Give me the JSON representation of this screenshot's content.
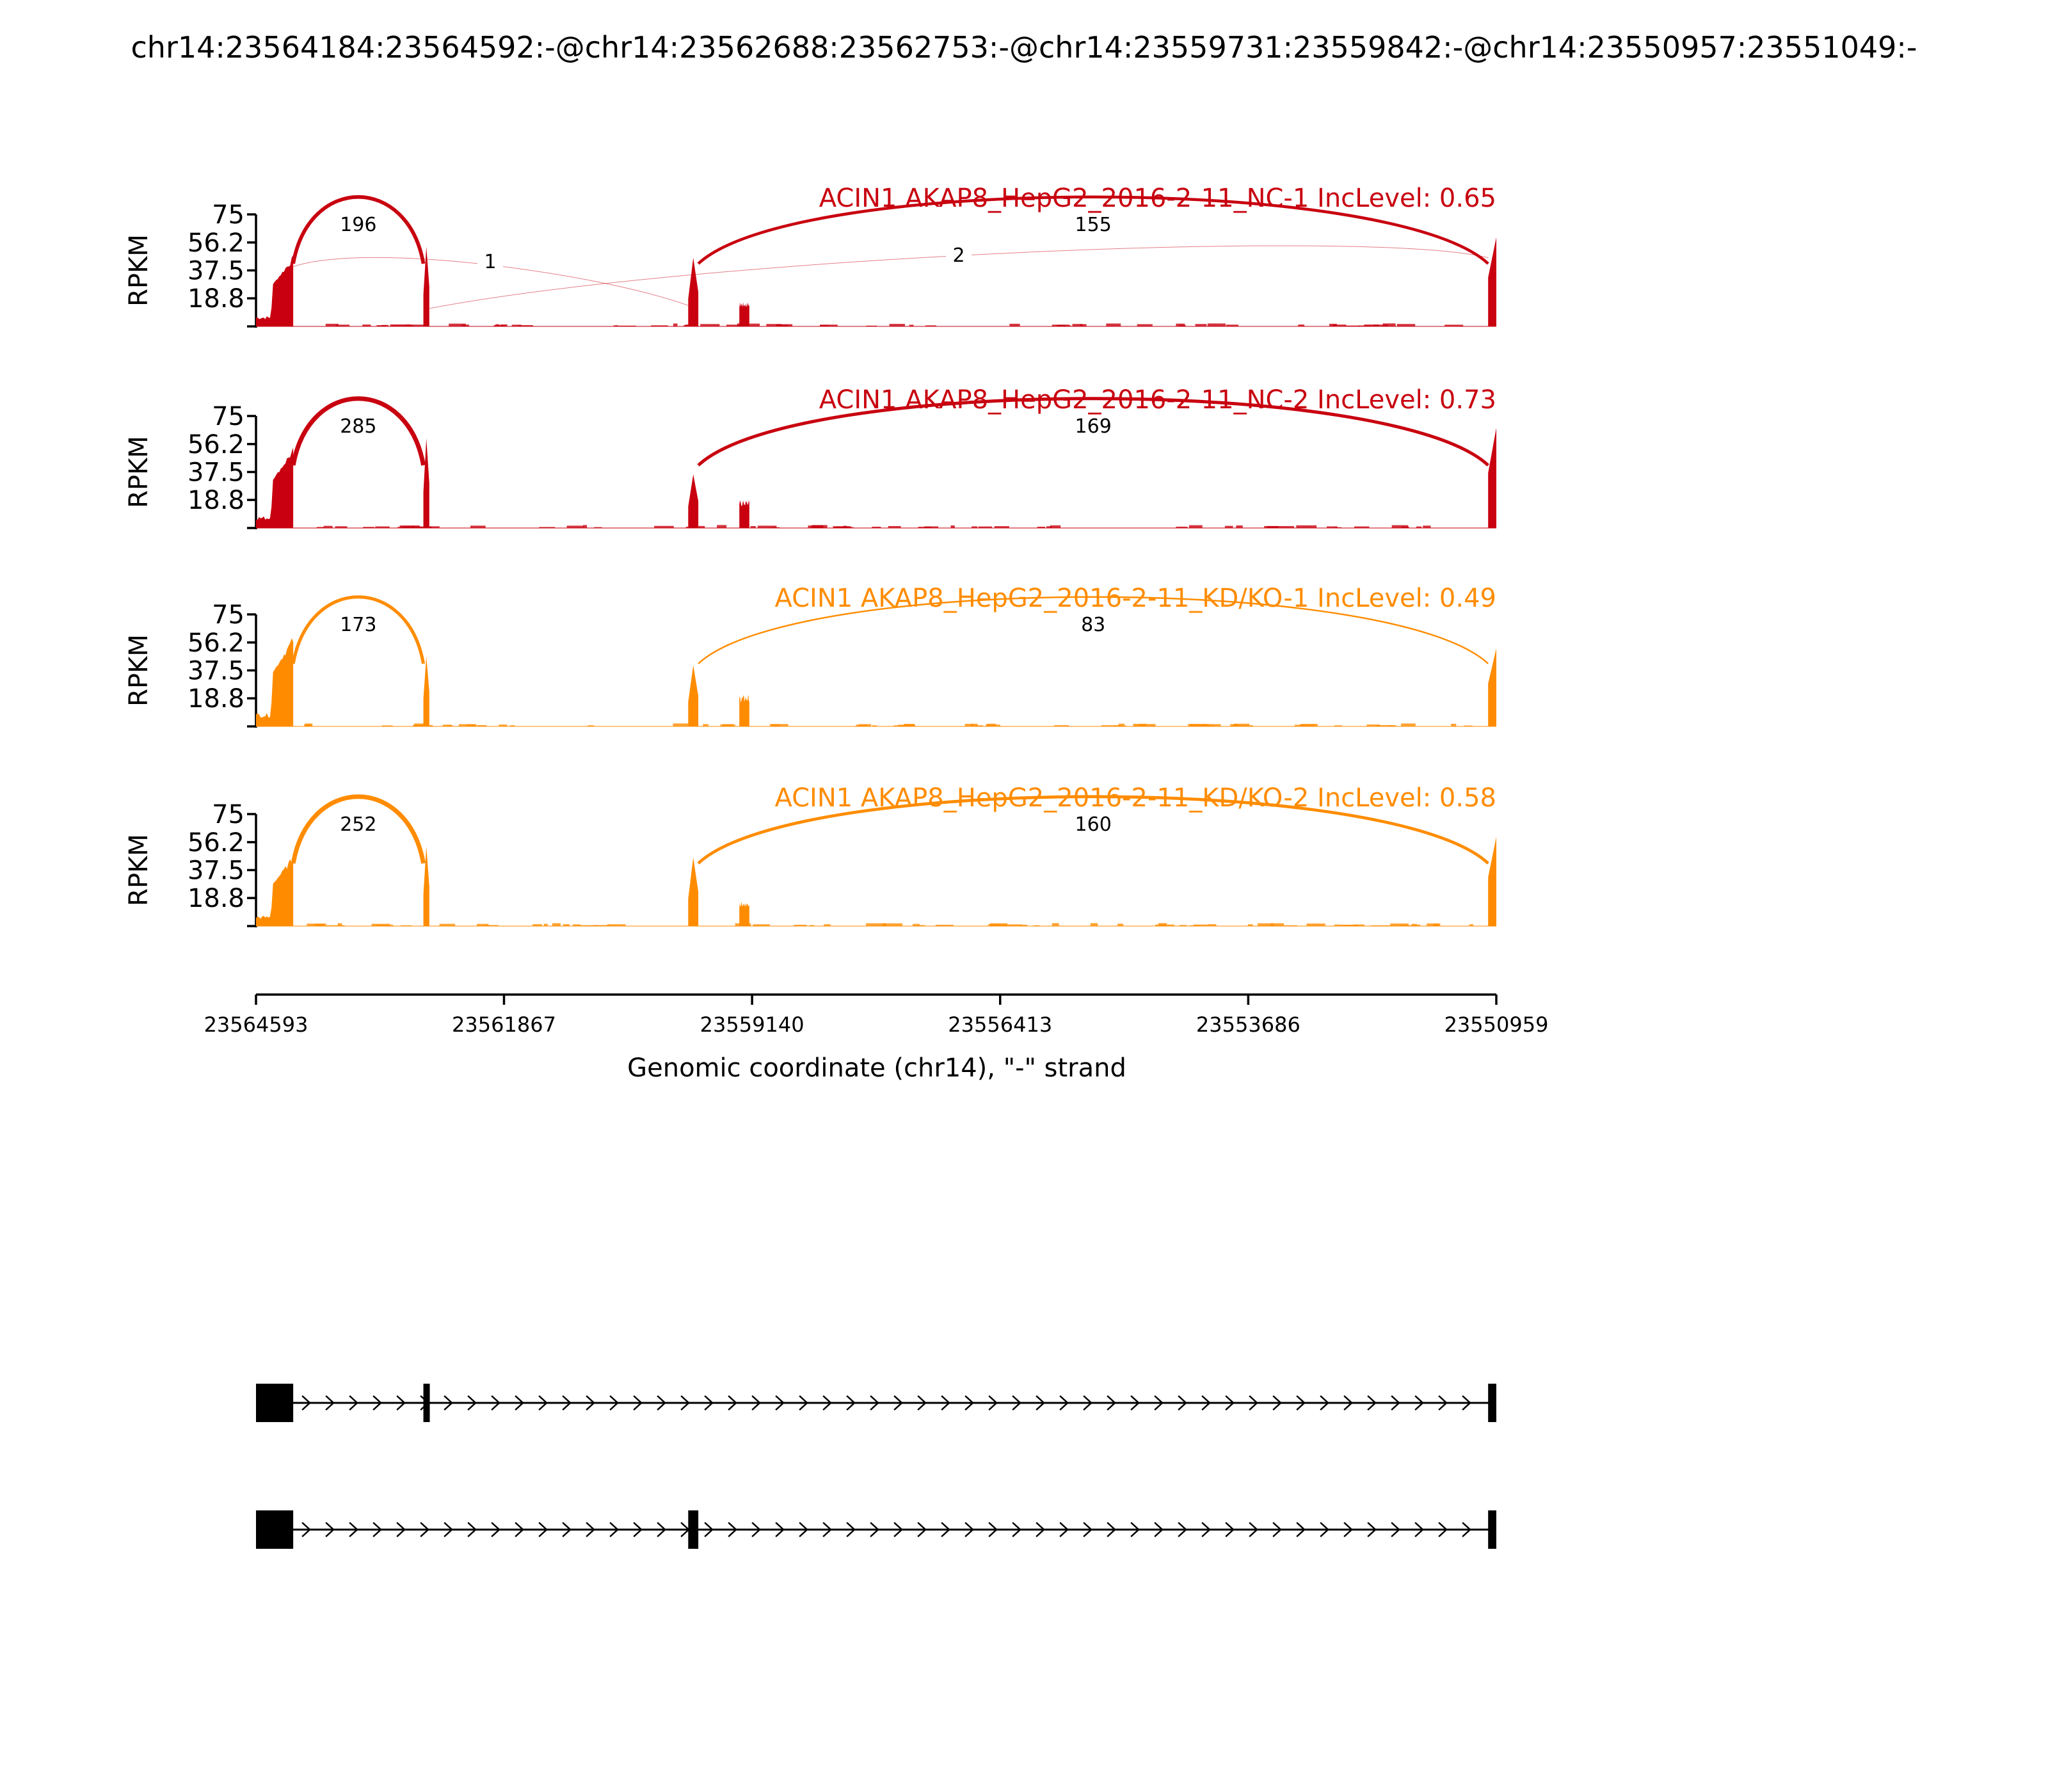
{
  "title": "chr14:23564184:23564592:-@chr14:23562688:23562753:-@chr14:23559731:23559842:-@chr14:23550957:23551049:-",
  "chart_data": {
    "type": "sashimi",
    "xlabel": "Genomic coordinate (chr14), \"-\" strand",
    "x_ticks": [
      "23564593",
      "23561867",
      "23559140",
      "23556413",
      "23553686",
      "23550959"
    ],
    "xlim": [
      23564593,
      23550959
    ],
    "ylabel": "RPKM",
    "y_ticks": [
      "18.8",
      "37.5",
      "56.2",
      "75"
    ],
    "ylim": [
      0,
      75
    ],
    "colors": {
      "control": "#c8000f",
      "knockdown": "#ff8c00"
    },
    "exons": [
      {
        "start": 23564593,
        "end": 23564184
      },
      {
        "start": 23562753,
        "end": 23562688
      },
      {
        "start": 23559842,
        "end": 23559731
      },
      {
        "start": 23559280,
        "end": 23559170
      },
      {
        "start": 23551049,
        "end": 23550959
      }
    ],
    "panels": [
      {
        "label": "ACIN1 AKAP8_HepG2_2016-2-11_NC-1 IncLevel: 0.65",
        "group": "control",
        "junctions": [
          {
            "from": 23564184,
            "to": 23562753,
            "count": "196",
            "style": "above"
          },
          {
            "from": 23559731,
            "to": 23551049,
            "count": "155",
            "style": "above"
          },
          {
            "from": 23564184,
            "to": 23559842,
            "count": "1",
            "style": "below"
          },
          {
            "from": 23562688,
            "to": 23551049,
            "count": "2",
            "style": "below"
          }
        ]
      },
      {
        "label": "ACIN1 AKAP8_HepG2_2016-2-11_NC-2 IncLevel: 0.73",
        "group": "control",
        "junctions": [
          {
            "from": 23564184,
            "to": 23562753,
            "count": "285",
            "style": "above"
          },
          {
            "from": 23559731,
            "to": 23551049,
            "count": "169",
            "style": "above"
          }
        ]
      },
      {
        "label": "ACIN1 AKAP8_HepG2_2016-2-11_KD/KO-1 IncLevel: 0.49",
        "group": "knockdown",
        "junctions": [
          {
            "from": 23564184,
            "to": 23562753,
            "count": "173",
            "style": "above"
          },
          {
            "from": 23559731,
            "to": 23551049,
            "count": "83",
            "style": "above"
          }
        ]
      },
      {
        "label": "ACIN1 AKAP8_HepG2_2016-2-11_KD/KO-2 IncLevel: 0.58",
        "group": "knockdown",
        "junctions": [
          {
            "from": 23564184,
            "to": 23562753,
            "count": "252",
            "style": "above"
          },
          {
            "from": 23559731,
            "to": 23551049,
            "count": "160",
            "style": "above"
          }
        ]
      }
    ],
    "isoforms": [
      {
        "exons": [
          {
            "start": 23564593,
            "end": 23564184
          },
          {
            "start": 23562753,
            "end": 23562688
          },
          {
            "start": 23551049,
            "end": 23550959
          }
        ]
      },
      {
        "exons": [
          {
            "start": 23564593,
            "end": 23564184
          },
          {
            "start": 23559842,
            "end": 23559731
          },
          {
            "start": 23551049,
            "end": 23550959
          }
        ]
      }
    ]
  }
}
